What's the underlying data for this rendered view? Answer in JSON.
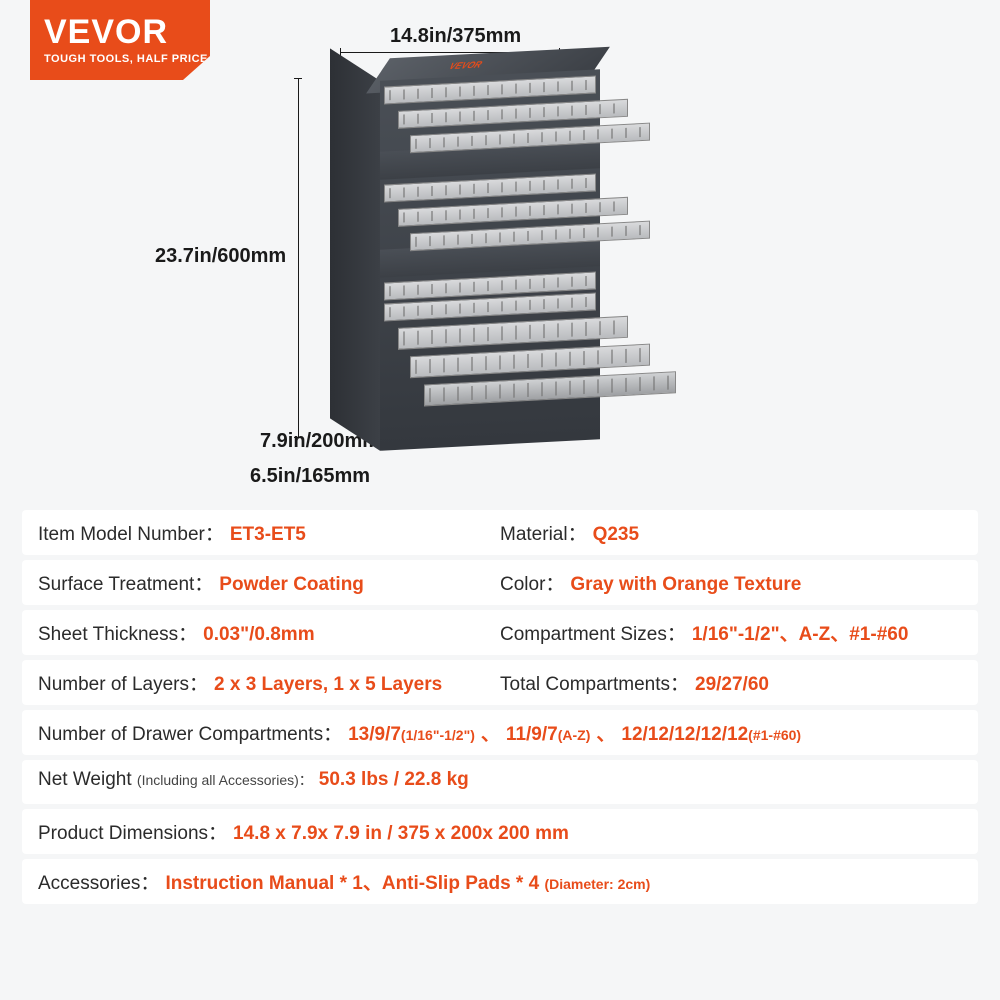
{
  "brand": {
    "name": "VEVOR",
    "tagline": "TOUGH TOOLS, HALF PRICE",
    "badge_color": "#e84c1a"
  },
  "colors": {
    "accent": "#e84c1a",
    "text": "#2b2b2b",
    "row_bg": "#ffffff",
    "page_bg": "#f5f6f7"
  },
  "dimensions": {
    "width": "14.8in/375mm",
    "height": "23.7in/600mm",
    "depth1": "7.9in/200mm",
    "depth2": "6.5in/165mm"
  },
  "specs": [
    {
      "layout": "two",
      "left_label": "Item Model Number：",
      "left_value": "ET3-ET5",
      "right_label": "Material：",
      "right_value": "Q235"
    },
    {
      "layout": "two",
      "left_label": "Surface Treatment：",
      "left_value": "Powder Coating",
      "right_label": "Color：",
      "right_value": "Gray with Orange Texture"
    },
    {
      "layout": "two",
      "left_label": "Sheet Thickness：",
      "left_value": "0.03\"/0.8mm",
      "right_label": "Compartment Sizes：",
      "right_value": "1/16\"-1/2\"、A-Z、#1-#60"
    },
    {
      "layout": "two",
      "left_label": "Number of Layers：",
      "left_value": "2 x 3 Layers, 1 x 5 Layers",
      "right_label": "Total Compartments：",
      "right_value": "29/27/60"
    },
    {
      "layout": "one",
      "left_label": "Number of Drawer Compartments：",
      "segments": [
        {
          "main": "13/9/7",
          "sub": "(1/16\"-1/2\")"
        },
        {
          "sep": "、"
        },
        {
          "main": "11/9/7",
          "sub": "(A-Z)"
        },
        {
          "sep": "、"
        },
        {
          "main": "12/12/12/12/12",
          "sub": "(#1-#60)"
        }
      ]
    },
    {
      "layout": "one",
      "left_label": "Net Weight ",
      "left_label_sub": "(Including all Accessories)：",
      "left_value": "50.3 lbs / 22.8 kg"
    },
    {
      "layout": "one",
      "left_label": "Product Dimensions：",
      "left_value": "14.8 x 7.9x 7.9 in  / 375 x 200x 200 mm"
    },
    {
      "layout": "one",
      "left_label": "Accessories：",
      "segments": [
        {
          "main": "Instruction Manual * 1、Anti-Slip Pads * 4 ",
          "sub": "(Diameter: 2cm)"
        }
      ]
    }
  ]
}
